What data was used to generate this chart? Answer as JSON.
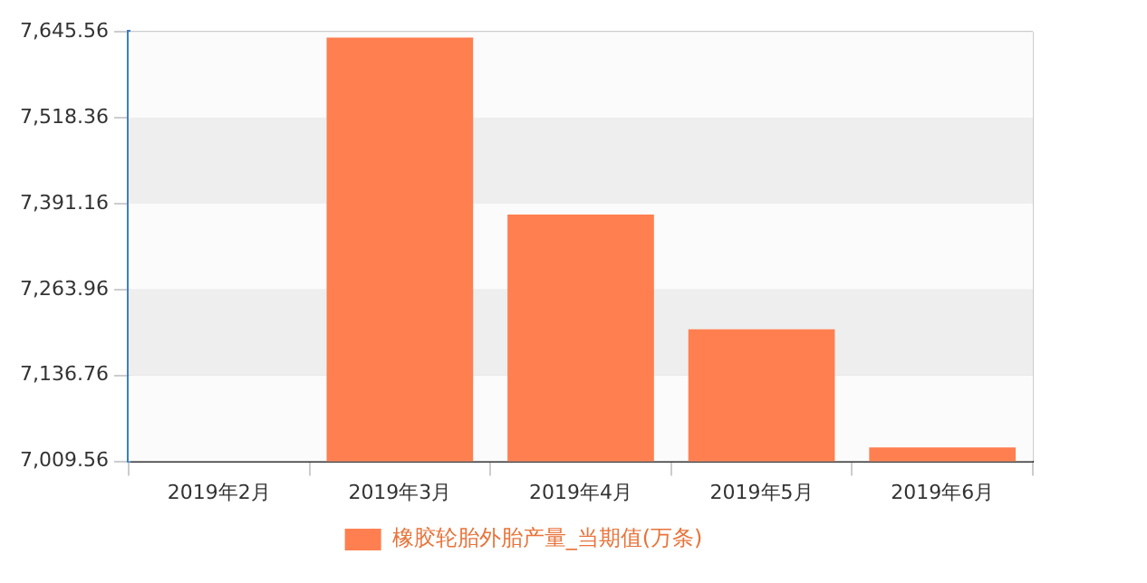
{
  "chart_data": {
    "type": "bar",
    "categories": [
      "2019年2月",
      "2019年3月",
      "2019年4月",
      "2019年5月",
      "2019年6月"
    ],
    "series": [
      {
        "name": "橡胶轮胎外胎产量_当期值(万条)",
        "color": "#ff7f50",
        "values": [
          null,
          7637,
          7375,
          7205,
          7030
        ]
      }
    ],
    "ylim": [
      7009.56,
      7645.56
    ],
    "yticks": [
      {
        "value": 7009.56,
        "label": "7,009.56"
      },
      {
        "value": 7136.76,
        "label": "7,136.76"
      },
      {
        "value": 7263.96,
        "label": "7,263.96"
      },
      {
        "value": 7391.16,
        "label": "7,391.16"
      },
      {
        "value": 7518.36,
        "label": "7,518.36"
      },
      {
        "value": 7645.56,
        "label": "7,645.56"
      }
    ],
    "grid": true,
    "legend": "bottom"
  }
}
